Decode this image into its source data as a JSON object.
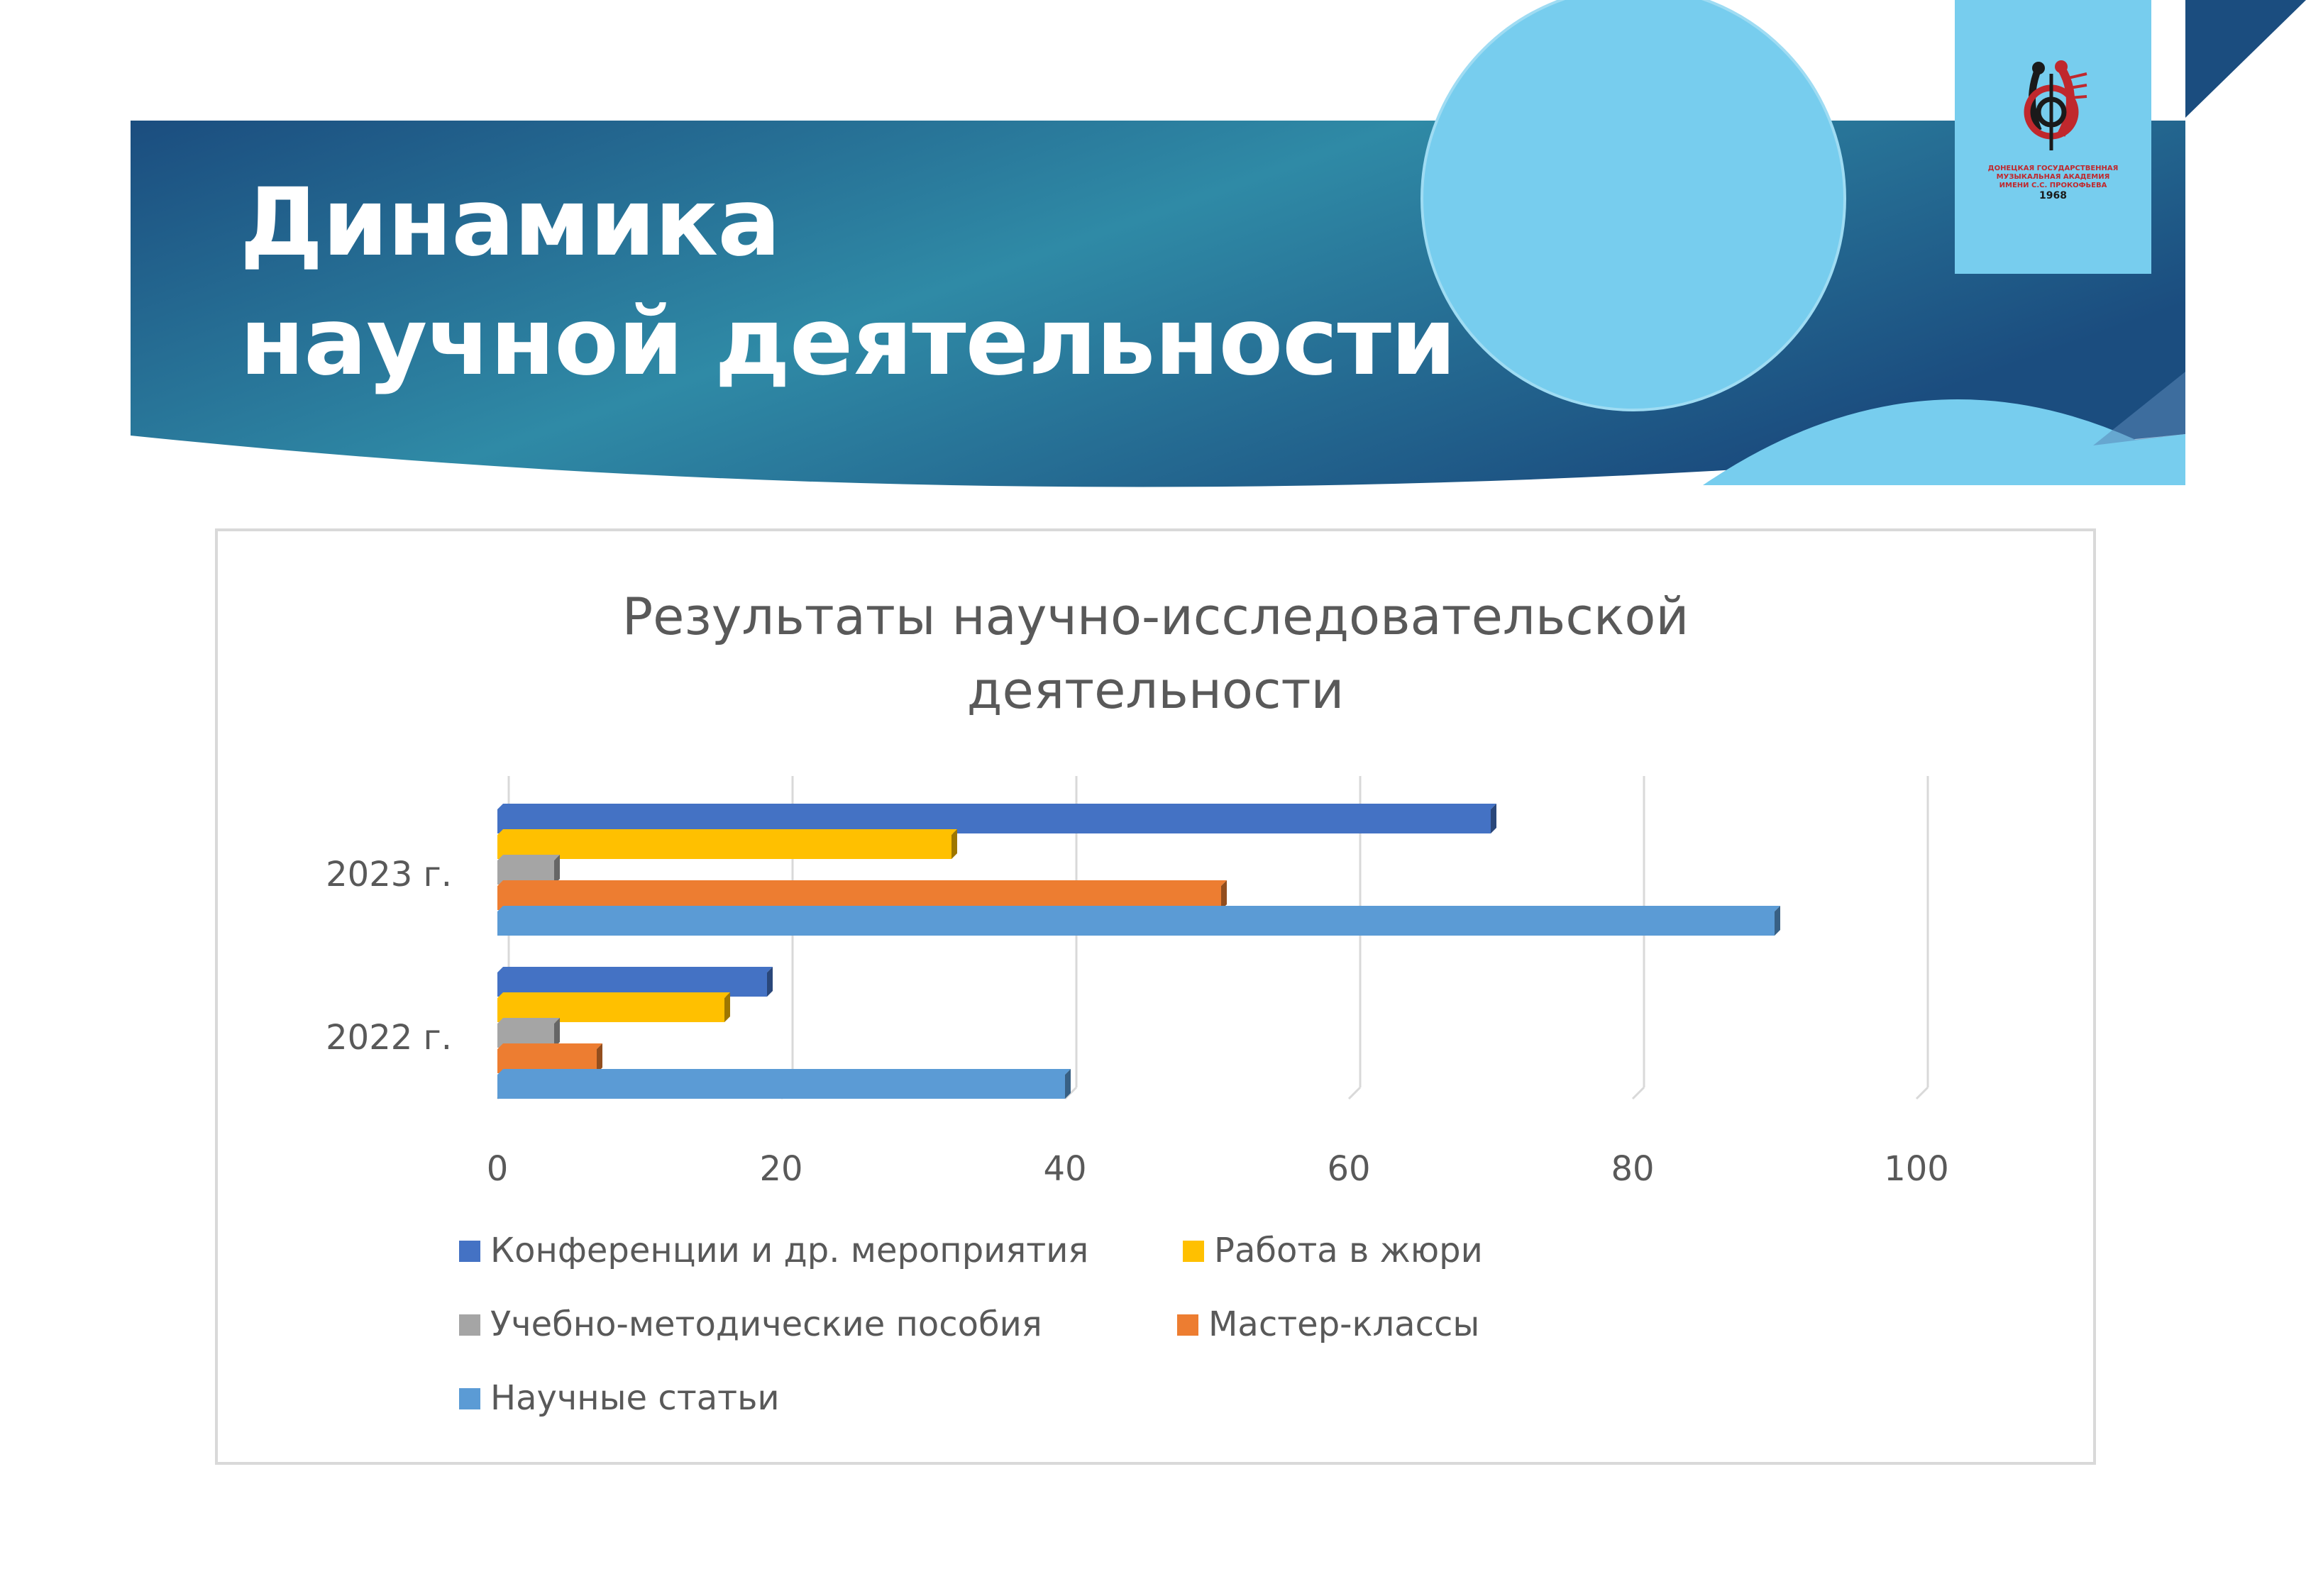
{
  "slide": {
    "title_line1": "Динамика",
    "title_line2": "научной деятельности"
  },
  "logo": {
    "text_line1": "ДОНЕЦКАЯ ГОСУДАРСТВЕННАЯ",
    "text_line2": "МУЗЫКАЛЬНАЯ АКАДЕМИЯ",
    "text_line3": "ИМЕНИ С.С. ПРОКОФЬЕВА",
    "year": "1968"
  },
  "colors": {
    "banner_dark": "#1b4d7f",
    "banner_mid": "#2f8aa6",
    "circle_light": "#77cdee",
    "logo_red": "#c0282d"
  },
  "chart_data": {
    "type": "bar",
    "orientation": "horizontal",
    "title_line1": "Результаты научно-исследовательской",
    "title_line2": "деятельности",
    "categories": [
      "2023 г.",
      "2022 г."
    ],
    "xlim": [
      0,
      100
    ],
    "xticks": [
      0,
      20,
      40,
      60,
      80,
      100
    ],
    "grid": true,
    "legend_position": "bottom",
    "series": [
      {
        "name": "Конференции и др. мероприятия",
        "color": "#4472c4",
        "values": [
          70,
          19
        ]
      },
      {
        "name": "Работа в жюри",
        "color": "#ffc000",
        "values": [
          32,
          16
        ]
      },
      {
        "name": "Учебно-методические пособия",
        "color": "#a5a5a5",
        "values": [
          4,
          4
        ]
      },
      {
        "name": "Мастер-классы",
        "color": "#ed7d31",
        "values": [
          51,
          7
        ]
      },
      {
        "name": "Научные статьи",
        "color": "#5b9bd5",
        "values": [
          90,
          40
        ]
      }
    ]
  }
}
